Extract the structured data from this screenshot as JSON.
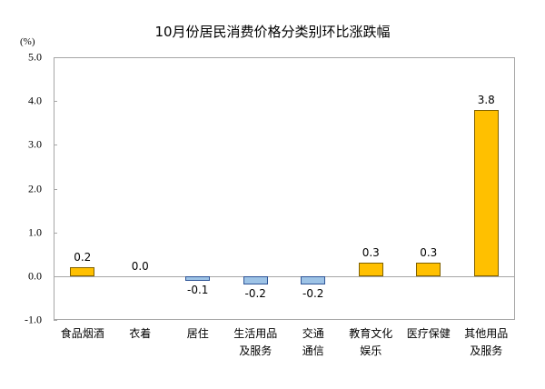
{
  "chart_data": {
    "type": "bar",
    "title": "10月份居民消费价格分类别环比涨跌幅",
    "ylabel": "(%)",
    "xlabel": "",
    "ylim": [
      -1.0,
      5.0
    ],
    "yticks": [
      "5.0",
      "4.0",
      "3.0",
      "2.0",
      "1.0",
      "0.0",
      "-1.0"
    ],
    "categories": [
      "食品烟酒",
      "衣着",
      "居住",
      "生活用品及服务",
      "交通通信",
      "教育文化娱乐",
      "医疗保健",
      "其他用品及服务"
    ],
    "category_lines": [
      [
        "食品烟酒"
      ],
      [
        "衣着"
      ],
      [
        "居住"
      ],
      [
        "生活用品",
        "及服务"
      ],
      [
        "交通",
        "通信"
      ],
      [
        "教育文化",
        "娱乐"
      ],
      [
        "医疗保健"
      ],
      [
        "其他用品",
        "及服务"
      ]
    ],
    "values": [
      0.2,
      0.0,
      -0.1,
      -0.2,
      -0.2,
      0.3,
      0.3,
      3.8
    ],
    "value_labels": [
      "0.2",
      "0.0",
      "-0.1",
      "-0.2",
      "-0.2",
      "0.3",
      "0.3",
      "3.8"
    ],
    "grid": false,
    "legend": null,
    "colors": {
      "positive": "#FFC000",
      "negative": "#9DC3E6"
    }
  }
}
